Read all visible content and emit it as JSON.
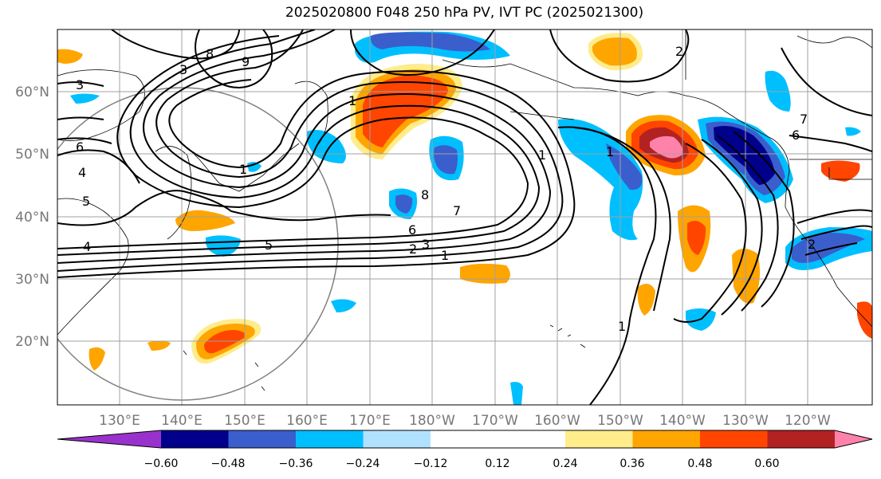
{
  "title": "2025020800 F048 250 hPa PV, IVT PC (2025021300)",
  "lon_labels": [
    "130°E",
    "140°E",
    "150°E",
    "160°E",
    "170°E",
    "180°W",
    "170°W",
    "160°W",
    "150°W",
    "140°W",
    "130°W",
    "120°W"
  ],
  "lat_labels": [
    "60°N",
    "50°N",
    "40°N",
    "30°N",
    "20°N"
  ],
  "colorbar": {
    "colors": [
      "#9932cc",
      "#00008b",
      "#3a5fcd",
      "#00bfff",
      "#b0e2ff",
      "#ffffff",
      "#ffffff",
      "#ffec8b",
      "#ffa500",
      "#ff4500",
      "#b22222",
      "#ff82ab"
    ],
    "tick_labels": [
      "−0.60",
      "−0.48",
      "−0.36",
      "−0.24",
      "−0.12",
      "0.12",
      "0.24",
      "0.36",
      "0.48",
      "0.60"
    ]
  },
  "contour_labels": [
    "8",
    "9",
    "3",
    "3",
    "6",
    "4",
    "5",
    "4",
    "1",
    "1",
    "8",
    "7",
    "6",
    "5",
    "3",
    "2",
    "1",
    "1",
    "1",
    "1",
    "7",
    "6",
    "2",
    "2"
  ],
  "colors": {
    "gridline": "#a0a0a0",
    "contour": "#000000",
    "circle": "#808080"
  }
}
